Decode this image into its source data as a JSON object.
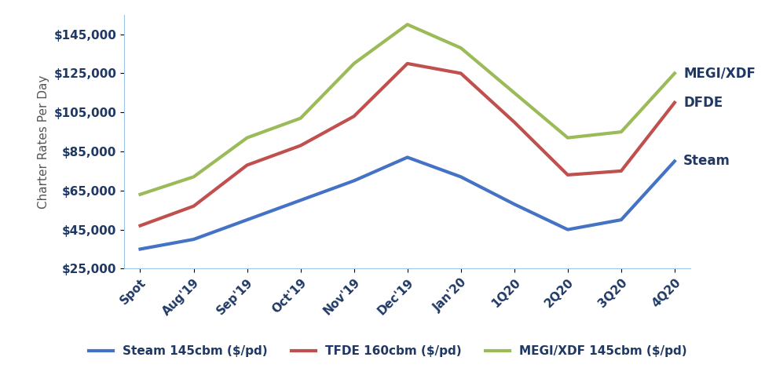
{
  "chart_data": {
    "type": "line",
    "y_label": "Charter Rates Per Day",
    "categories": [
      "Spot",
      "Aug'19",
      "Sep'19",
      "Oct'19",
      "Nov'19",
      "Dec'19",
      "Jan'20",
      "1Q20",
      "2Q20",
      "3Q20",
      "4Q20"
    ],
    "series": [
      {
        "name": "Steam 145cbm ($/pd)",
        "color": "#4472c4",
        "line_style": "solid",
        "values": [
          35000,
          40000,
          50000,
          60000,
          70000,
          82000,
          72000,
          58000,
          45000,
          50000,
          80000
        ]
      },
      {
        "name": "TFDE 160cbm ($/pd)",
        "color": "#c0504d",
        "line_style": "solid",
        "values": [
          47000,
          57000,
          78000,
          88000,
          103000,
          130000,
          125000,
          100000,
          73000,
          75000,
          110000
        ]
      },
      {
        "name": "MEGI/XDF 145cbm ($/pd)",
        "color": "#9bbb59",
        "line_style": "solid",
        "values": [
          63000,
          72000,
          92000,
          102000,
          130000,
          150000,
          138000,
          115000,
          92000,
          95000,
          125000
        ]
      }
    ],
    "annotations": [
      {
        "text": "MEGI/XDF",
        "series": "MEGI/XDF 145cbm ($/pd)"
      },
      {
        "text": "DFDE",
        "series": "TFDE 160cbm ($/pd)"
      },
      {
        "text": "Steam",
        "series": "Steam 145cbm ($/pd)"
      }
    ],
    "ylim": [
      25000,
      155000
    ],
    "yticks": [
      {
        "value": 25000,
        "label": "$25,000"
      },
      {
        "value": 45000,
        "label": "$45,000"
      },
      {
        "value": 65000,
        "label": "$65,000"
      },
      {
        "value": 85000,
        "label": "$85,000"
      },
      {
        "value": 105000,
        "label": "$105,000"
      },
      {
        "value": 125000,
        "label": "$125,000"
      },
      {
        "value": 145000,
        "label": "$145,000"
      }
    ],
    "grid": false,
    "legend": "bottom"
  }
}
